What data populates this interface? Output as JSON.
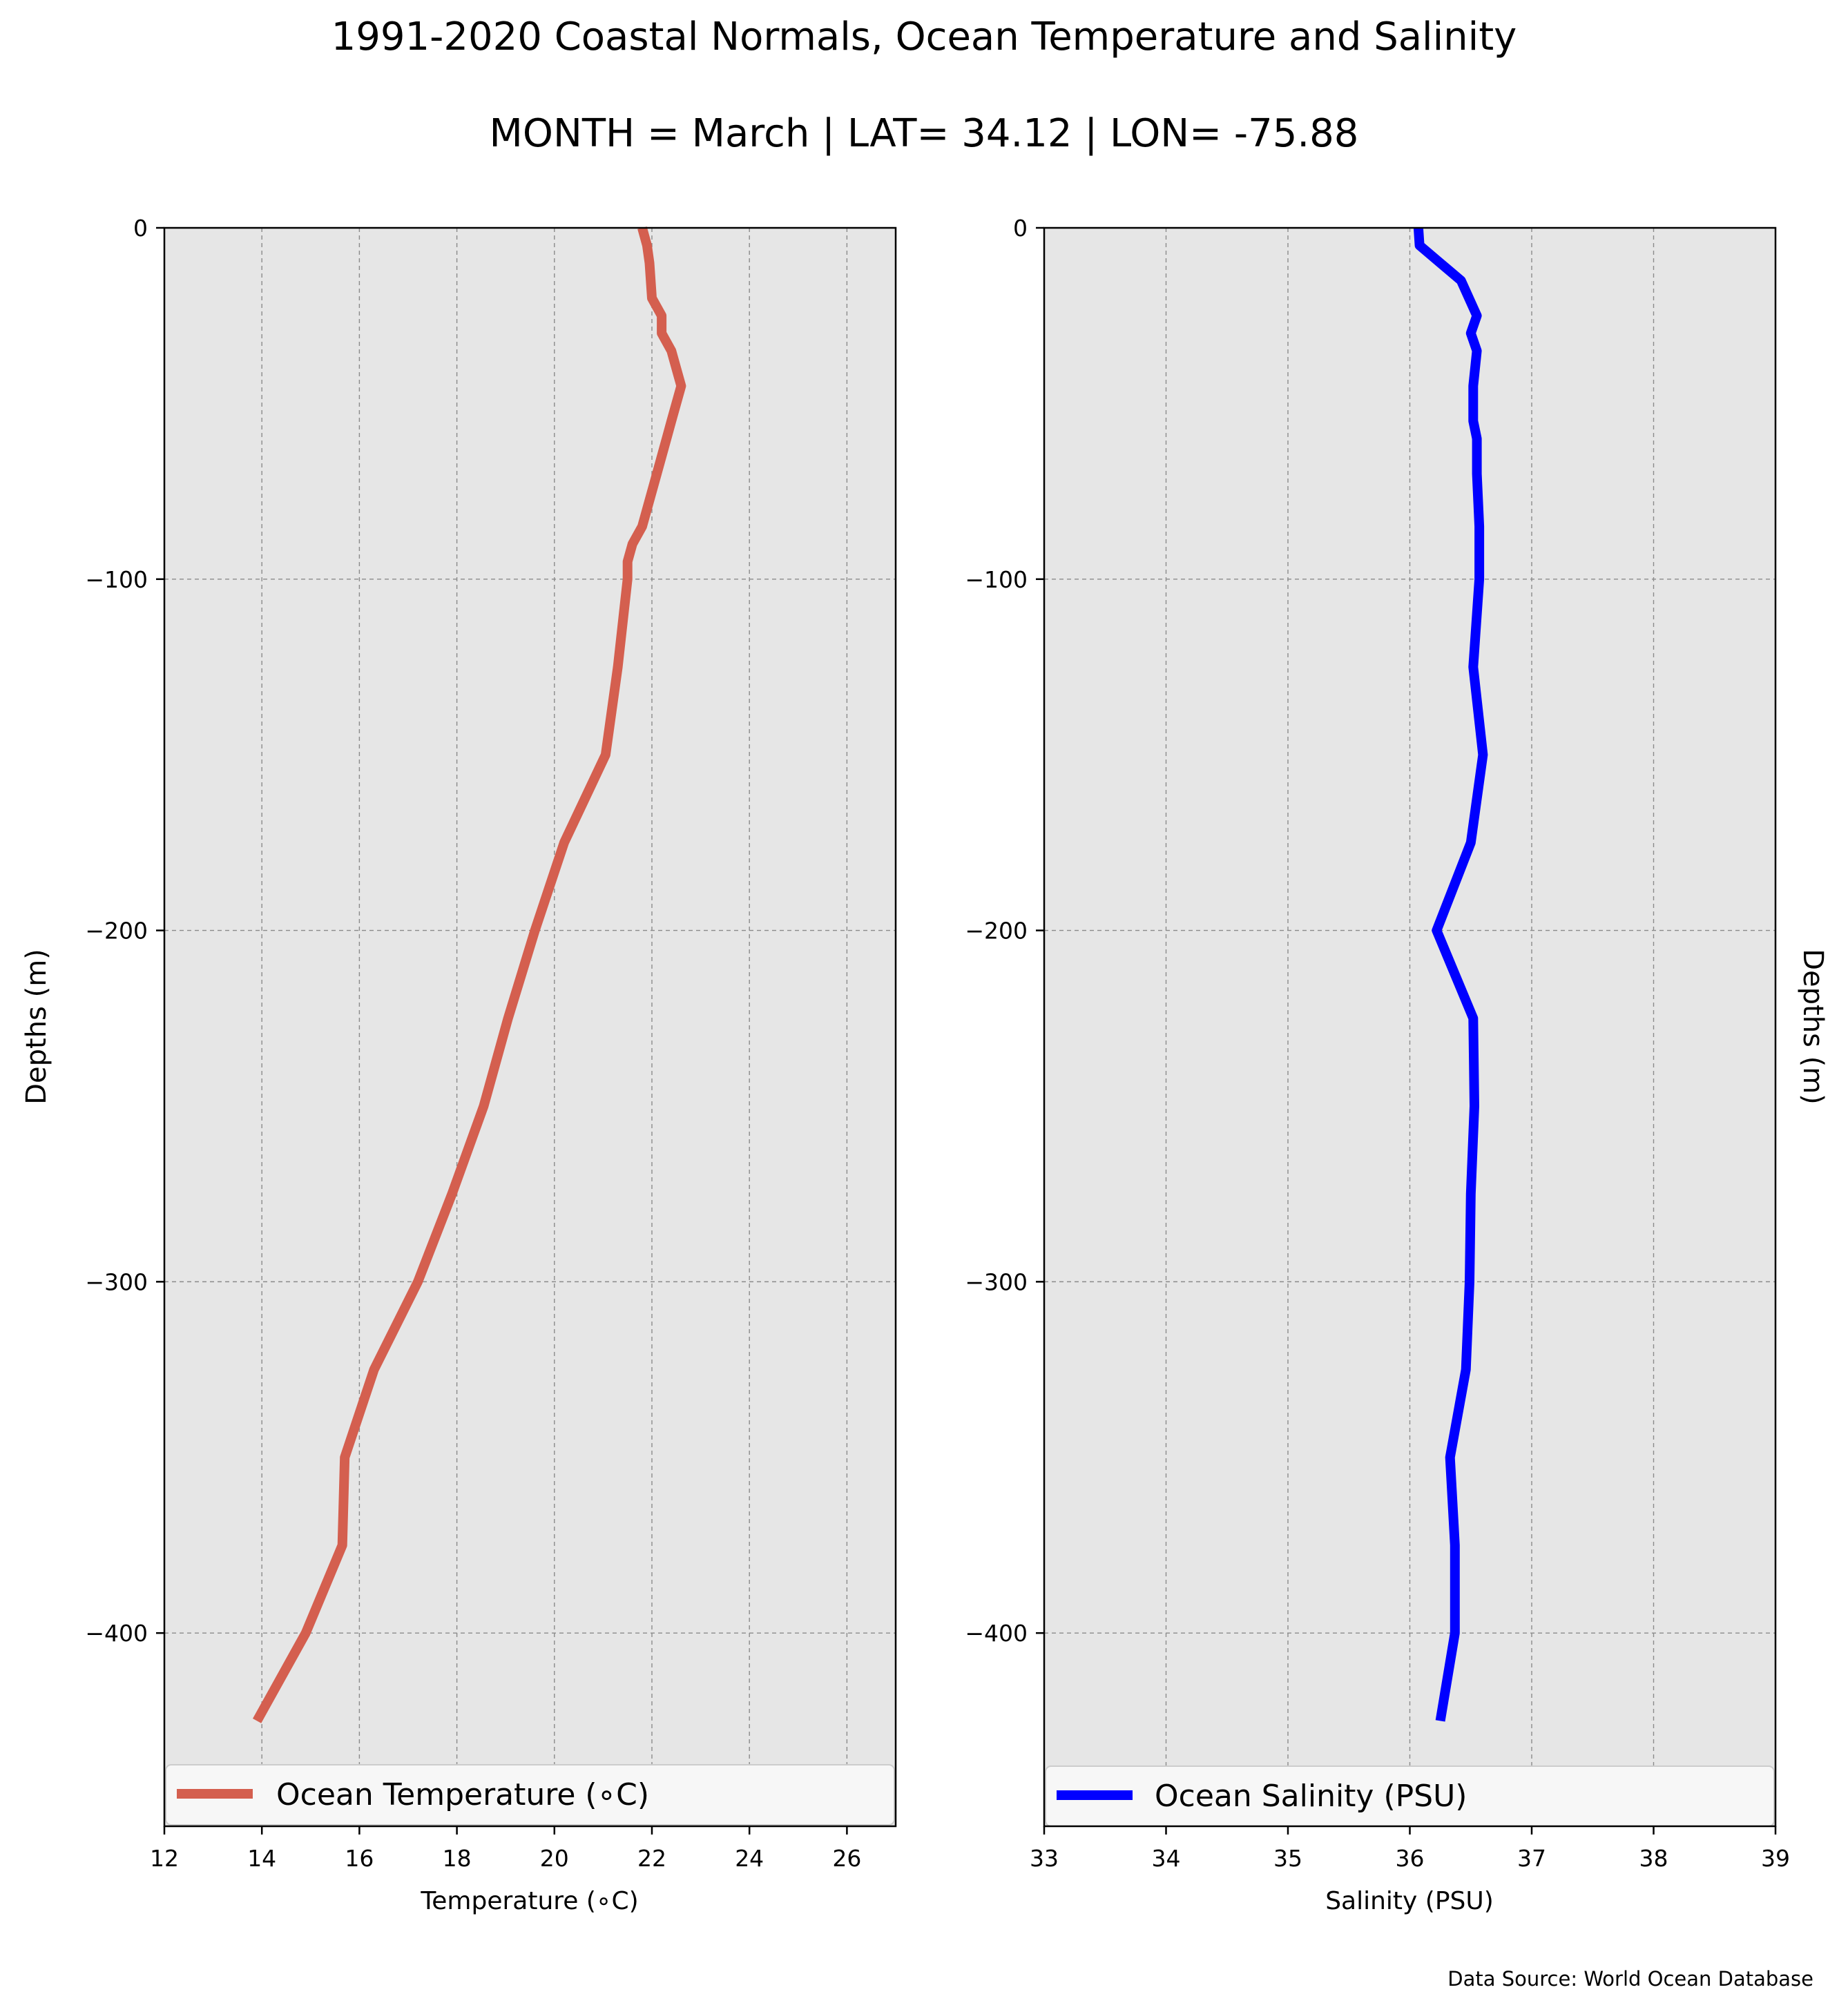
{
  "title": "1991-2020 Coastal Normals, Ocean Temperature and Salinity",
  "subtitle": "MONTH = March | LAT= 34.12 | LON= -75.88",
  "source": "Data Source: World Ocean Database",
  "chart_data": [
    {
      "type": "line",
      "xlabel": "Temperature (∘C)",
      "ylabel": "Depths (m)",
      "xlim": [
        12,
        27
      ],
      "ylim": [
        -455,
        0
      ],
      "x_ticks": [
        "12",
        "14",
        "16",
        "18",
        "20",
        "22",
        "24",
        "26"
      ],
      "y_ticks": [
        "0",
        "−100",
        "−200",
        "−300",
        "−400"
      ],
      "grid": true,
      "background": "#e6e6e6",
      "legend_position": "lower center",
      "series": [
        {
          "name": "Ocean Temperature (∘C)",
          "color": "#d45f4f",
          "points": [
            {
              "x": 21.8,
              "y": 0
            },
            {
              "x": 21.9,
              "y": -5
            },
            {
              "x": 21.95,
              "y": -10
            },
            {
              "x": 22.0,
              "y": -20
            },
            {
              "x": 22.2,
              "y": -25
            },
            {
              "x": 22.2,
              "y": -30
            },
            {
              "x": 22.4,
              "y": -35
            },
            {
              "x": 22.6,
              "y": -45
            },
            {
              "x": 22.4,
              "y": -55
            },
            {
              "x": 22.3,
              "y": -60
            },
            {
              "x": 22.1,
              "y": -70
            },
            {
              "x": 21.8,
              "y": -85
            },
            {
              "x": 21.6,
              "y": -90
            },
            {
              "x": 21.5,
              "y": -95
            },
            {
              "x": 21.5,
              "y": -100
            },
            {
              "x": 21.3,
              "y": -125
            },
            {
              "x": 21.05,
              "y": -150
            },
            {
              "x": 20.2,
              "y": -175
            },
            {
              "x": 19.6,
              "y": -200
            },
            {
              "x": 19.05,
              "y": -225
            },
            {
              "x": 18.55,
              "y": -250
            },
            {
              "x": 17.9,
              "y": -275
            },
            {
              "x": 17.2,
              "y": -300
            },
            {
              "x": 16.3,
              "y": -325
            },
            {
              "x": 15.7,
              "y": -350
            },
            {
              "x": 15.65,
              "y": -375
            },
            {
              "x": 14.9,
              "y": -400
            },
            {
              "x": 13.9,
              "y": -425
            }
          ]
        }
      ]
    },
    {
      "type": "line",
      "xlabel": "Salinity (PSU)",
      "ylabel": "Depths (m)",
      "xlim": [
        33,
        39
      ],
      "ylim": [
        -455,
        0
      ],
      "x_ticks": [
        "33",
        "34",
        "35",
        "36",
        "37",
        "38",
        "39"
      ],
      "y_ticks": [
        "0",
        "−100",
        "−200",
        "−300",
        "−400"
      ],
      "grid": true,
      "background": "#e6e6e6",
      "legend_position": "lower center",
      "series": [
        {
          "name": "Ocean Salinity (PSU)",
          "color": "#0000ff",
          "points": [
            {
              "x": 36.07,
              "y": 0
            },
            {
              "x": 36.08,
              "y": -5
            },
            {
              "x": 36.25,
              "y": -10
            },
            {
              "x": 36.42,
              "y": -15
            },
            {
              "x": 36.55,
              "y": -25
            },
            {
              "x": 36.5,
              "y": -30
            },
            {
              "x": 36.55,
              "y": -35
            },
            {
              "x": 36.52,
              "y": -45
            },
            {
              "x": 36.52,
              "y": -55
            },
            {
              "x": 36.55,
              "y": -60
            },
            {
              "x": 36.55,
              "y": -70
            },
            {
              "x": 36.57,
              "y": -85
            },
            {
              "x": 36.57,
              "y": -100
            },
            {
              "x": 36.52,
              "y": -125
            },
            {
              "x": 36.6,
              "y": -150
            },
            {
              "x": 36.5,
              "y": -175
            },
            {
              "x": 36.22,
              "y": -200
            },
            {
              "x": 36.52,
              "y": -225
            },
            {
              "x": 36.53,
              "y": -250
            },
            {
              "x": 36.5,
              "y": -275
            },
            {
              "x": 36.49,
              "y": -300
            },
            {
              "x": 36.46,
              "y": -325
            },
            {
              "x": 36.33,
              "y": -350
            },
            {
              "x": 36.37,
              "y": -375
            },
            {
              "x": 36.37,
              "y": -400
            },
            {
              "x": 36.25,
              "y": -425
            }
          ]
        }
      ]
    }
  ]
}
